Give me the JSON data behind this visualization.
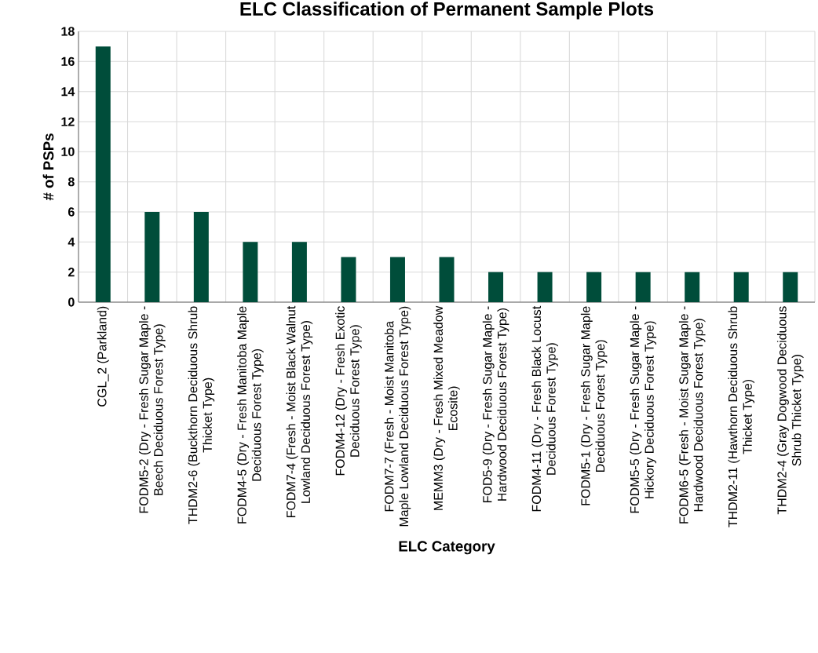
{
  "chart_data": {
    "type": "bar",
    "title": "ELC Classification of Permanent Sample Plots",
    "xlabel": "ELC Category",
    "ylabel": "# of PSPs",
    "categories": [
      "CGL_2 (Parkland)",
      "FODM5-2 (Dry - Fresh Sugar Maple - Beech Deciduous Forest Type)",
      "THDM2-6 (Buckthorn Deciduous Shrub Thicket Type)",
      "FODM4-5 (Dry - Fresh Manitoba Maple Deciduous Forest Type)",
      "FODM7-4 (Fresh - Moist Black Walnut Lowland Deciduous Forest Type)",
      "FODM4-12 (Dry - Fresh Exotic Deciduous Forest Type)",
      "FODM7-7 (Fresh - Moist Manitoba Maple Lowland Deciduous Forest Type)",
      "MEMM3 (Dry - Fresh Mixed Meadow Ecosite)",
      "FOD5-9 (Dry - Fresh Sugar Maple - Hardwood Deciduous Forest Type)",
      "FODM4-11 (Dry - Fresh Black Locust Deciduous Forest Type)",
      "FODM5-1 (Dry - Fresh Sugar Maple Deciduous Forest Type)",
      "FODM5-5 (Dry - Fresh Sugar Maple - Hickory Deciduous Forest Type)",
      "FODM6-5 (Fresh - Moist Sugar Maple - Hardwood Deciduous Forest Type)",
      "THDM2-11 (Hawthorn Deciduous Shrub Thicket Type)",
      "THDM2-4 (Gray Dogwood Deciduous Shrub Thicket Type)"
    ],
    "values": [
      17,
      6,
      6,
      4,
      4,
      3,
      3,
      3,
      2,
      2,
      2,
      2,
      2,
      2,
      2
    ],
    "color": "#004d3a",
    "ylim": [
      0,
      18
    ],
    "yticks": [
      0,
      2,
      4,
      6,
      8,
      10,
      12,
      14,
      16,
      18
    ],
    "grid": true
  }
}
